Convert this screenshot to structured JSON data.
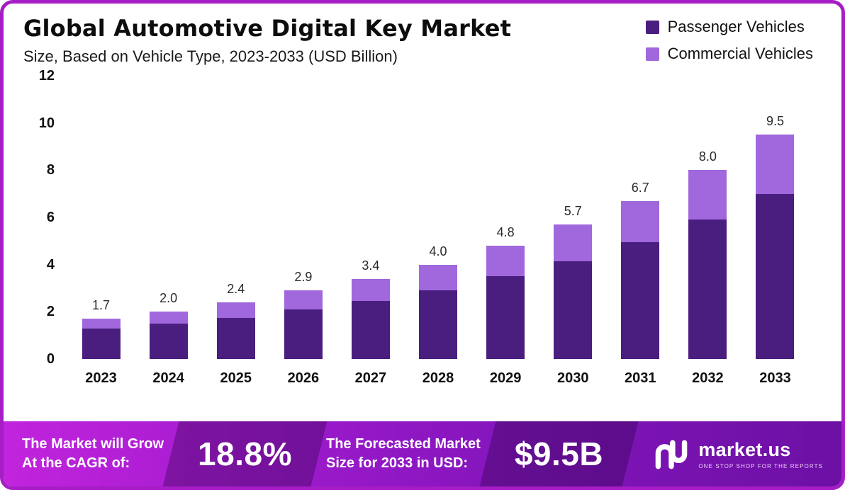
{
  "header": {
    "title": "Global Automotive Digital Key Market",
    "subtitle": "Size, Based on Vehicle Type, 2023-2033 (USD Billion)"
  },
  "chart_data": {
    "type": "bar",
    "stacked": true,
    "title": "Global Automotive Digital Key Market",
    "subtitle": "Size, Based on Vehicle Type, 2023-2033 (USD Billion)",
    "categories": [
      "2023",
      "2024",
      "2025",
      "2026",
      "2027",
      "2028",
      "2029",
      "2030",
      "2031",
      "2032",
      "2033"
    ],
    "series": [
      {
        "name": "Passenger Vehicles",
        "color": "#4A1E7F",
        "values": [
          1.3,
          1.5,
          1.75,
          2.1,
          2.45,
          2.9,
          3.5,
          4.15,
          4.95,
          5.9,
          7.0
        ]
      },
      {
        "name": "Commercial Vehicles",
        "color": "#A068DC",
        "values": [
          0.4,
          0.5,
          0.65,
          0.8,
          0.95,
          1.1,
          1.3,
          1.55,
          1.75,
          2.1,
          2.5
        ]
      }
    ],
    "totals": [
      "1.7",
      "2.0",
      "2.4",
      "2.9",
      "3.4",
      "4.0",
      "4.8",
      "5.7",
      "6.7",
      "8.0",
      "9.5"
    ],
    "yticks": [
      12,
      10,
      8,
      6,
      4,
      2,
      0
    ],
    "ylim": [
      0,
      12
    ],
    "grid": false,
    "legend_position": "top-right"
  },
  "footer": {
    "cagr_label_line1": "The Market will Grow",
    "cagr_label_line2": "At the CAGR of:",
    "cagr_value": "18.8%",
    "forecast_label_line1": "The Forecasted Market",
    "forecast_label_line2": "Size for 2033 in USD:",
    "forecast_value": "$9.5B",
    "brand": "market.us",
    "brand_tagline": "ONE STOP SHOP FOR THE REPORTS"
  }
}
